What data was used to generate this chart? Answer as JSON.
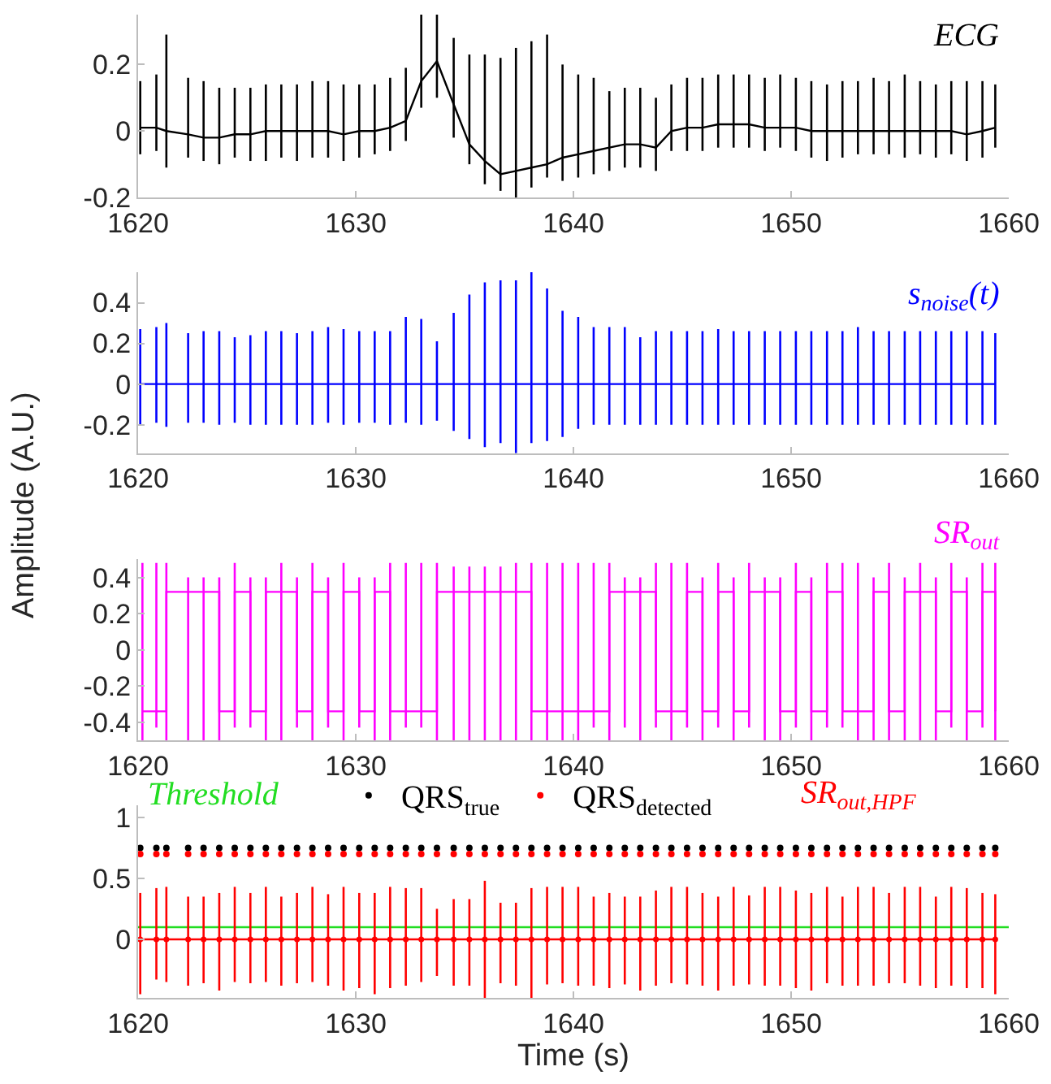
{
  "chart_data": [
    {
      "type": "line",
      "x": [
        1620.1,
        1620.84,
        1621.3,
        1622.3,
        1623.01,
        1623.73,
        1624.44,
        1625.16,
        1625.87,
        1626.58,
        1627.3,
        1628.01,
        1628.73,
        1629.44,
        1630.16,
        1630.87,
        1631.58,
        1632.3,
        1633.01,
        1633.73,
        1634.5,
        1635.22,
        1635.93,
        1636.65,
        1637.36,
        1638.07,
        1638.79,
        1639.5,
        1640.22,
        1640.93,
        1641.65,
        1642.36,
        1643.07,
        1643.79,
        1644.5,
        1645.22,
        1645.93,
        1646.65,
        1647.36,
        1648.07,
        1648.79,
        1649.5,
        1650.22,
        1650.93,
        1651.65,
        1652.36,
        1653.07,
        1653.79,
        1654.5,
        1655.22,
        1655.93,
        1656.65,
        1657.36,
        1658.07,
        1658.79,
        1659.38
      ],
      "series": [
        {
          "name": "ECG",
          "color": "#000000",
          "values": [
            0.01,
            0.01,
            0,
            -0.01,
            -0.02,
            -0.02,
            -0.01,
            -0.01,
            0,
            0,
            0,
            0,
            0,
            -0.01,
            0,
            0,
            0.01,
            0.03,
            0.15,
            0.21,
            0.08,
            -0.04,
            -0.09,
            -0.13,
            -0.12,
            -0.11,
            -0.1,
            -0.08,
            -0.07,
            -0.06,
            -0.05,
            -0.04,
            -0.04,
            -0.05,
            0,
            0.01,
            0.01,
            0.02,
            0.02,
            0.02,
            0.01,
            0.01,
            0.01,
            0,
            0,
            0,
            0,
            0,
            0,
            0,
            0,
            0,
            0,
            -0.01,
            0,
            0.01
          ],
          "errors": [
            [
              -0.07,
              0.15
            ],
            [
              -0.06,
              0.17
            ],
            [
              -0.11,
              0.29
            ],
            [
              -0.08,
              0.16
            ],
            [
              -0.09,
              0.15
            ],
            [
              -0.1,
              0.13
            ],
            [
              -0.08,
              0.13
            ],
            [
              -0.09,
              0.13
            ],
            [
              -0.09,
              0.14
            ],
            [
              -0.08,
              0.14
            ],
            [
              -0.09,
              0.14
            ],
            [
              -0.08,
              0.15
            ],
            [
              -0.08,
              0.15
            ],
            [
              -0.09,
              0.14
            ],
            [
              -0.08,
              0.14
            ],
            [
              -0.07,
              0.14
            ],
            [
              -0.06,
              0.16
            ],
            [
              -0.03,
              0.19
            ],
            [
              0.07,
              0.35
            ],
            [
              0.1,
              0.35
            ],
            [
              -0.02,
              0.28
            ],
            [
              -0.1,
              0.23
            ],
            [
              -0.16,
              0.23
            ],
            [
              -0.18,
              0.22
            ],
            [
              -0.2,
              0.25
            ],
            [
              -0.17,
              0.27
            ],
            [
              -0.14,
              0.29
            ],
            [
              -0.15,
              0.2
            ],
            [
              -0.14,
              0.17
            ],
            [
              -0.13,
              0.16
            ],
            [
              -0.12,
              0.12
            ],
            [
              -0.11,
              0.13
            ],
            [
              -0.11,
              0.13
            ],
            [
              -0.12,
              0.1
            ],
            [
              -0.06,
              0.14
            ],
            [
              -0.06,
              0.16
            ],
            [
              -0.06,
              0.16
            ],
            [
              -0.05,
              0.17
            ],
            [
              -0.05,
              0.17
            ],
            [
              -0.05,
              0.17
            ],
            [
              -0.06,
              0.16
            ],
            [
              -0.05,
              0.17
            ],
            [
              -0.06,
              0.16
            ],
            [
              -0.08,
              0.15
            ],
            [
              -0.09,
              0.14
            ],
            [
              -0.08,
              0.15
            ],
            [
              -0.07,
              0.15
            ],
            [
              -0.07,
              0.16
            ],
            [
              -0.07,
              0.15
            ],
            [
              -0.08,
              0.17
            ],
            [
              -0.07,
              0.15
            ],
            [
              -0.08,
              0.14
            ],
            [
              -0.07,
              0.15
            ],
            [
              -0.09,
              0.15
            ],
            [
              -0.08,
              0.15
            ],
            [
              -0.05,
              0.14
            ]
          ]
        }
      ],
      "xlim": [
        1620,
        1660
      ],
      "xticks": [
        1620,
        1630,
        1640,
        1650,
        1660
      ],
      "ylim": [
        -0.2,
        0.35
      ],
      "yticks": [
        -0.2,
        0,
        0.2
      ],
      "legend": "top right",
      "grid": false
    },
    {
      "type": "line",
      "x": [
        1620.1,
        1620.84,
        1621.3,
        1622.3,
        1623.01,
        1623.73,
        1624.44,
        1625.16,
        1625.87,
        1626.58,
        1627.3,
        1628.01,
        1628.73,
        1629.44,
        1630.16,
        1630.87,
        1631.58,
        1632.3,
        1633.01,
        1633.73,
        1634.5,
        1635.22,
        1635.93,
        1636.65,
        1637.36,
        1638.07,
        1638.79,
        1639.5,
        1640.22,
        1640.93,
        1641.65,
        1642.36,
        1643.07,
        1643.79,
        1644.5,
        1645.22,
        1645.93,
        1646.65,
        1647.36,
        1648.07,
        1648.79,
        1649.5,
        1650.22,
        1650.93,
        1651.65,
        1652.36,
        1653.07,
        1653.79,
        1654.5,
        1655.22,
        1655.93,
        1656.65,
        1657.36,
        1658.07,
        1658.79,
        1659.38
      ],
      "series": [
        {
          "name": "s$_{noise}$(t)",
          "color": "#0000ff",
          "values": [
            0,
            0,
            0,
            0,
            0,
            0,
            0,
            0,
            0,
            0,
            0,
            0,
            0,
            0,
            0,
            0,
            0,
            0,
            0,
            0,
            0,
            0,
            0,
            0,
            0,
            0,
            0,
            0,
            0,
            0,
            0,
            0,
            0,
            0,
            0,
            0,
            0,
            0,
            0,
            0,
            0,
            0,
            0,
            0,
            0,
            0,
            0,
            0,
            0,
            0,
            0,
            0,
            0,
            0,
            0,
            0
          ],
          "errors": [
            [
              -0.2,
              0.27
            ],
            [
              -0.19,
              0.28
            ],
            [
              -0.21,
              0.3
            ],
            [
              -0.19,
              0.25
            ],
            [
              -0.19,
              0.26
            ],
            [
              -0.2,
              0.26
            ],
            [
              -0.19,
              0.23
            ],
            [
              -0.2,
              0.24
            ],
            [
              -0.2,
              0.26
            ],
            [
              -0.2,
              0.26
            ],
            [
              -0.2,
              0.25
            ],
            [
              -0.2,
              0.26
            ],
            [
              -0.19,
              0.28
            ],
            [
              -0.2,
              0.27
            ],
            [
              -0.19,
              0.26
            ],
            [
              -0.19,
              0.26
            ],
            [
              -0.2,
              0.26
            ],
            [
              -0.19,
              0.33
            ],
            [
              -0.2,
              0.32
            ],
            [
              -0.18,
              0.21
            ],
            [
              -0.23,
              0.35
            ],
            [
              -0.27,
              0.44
            ],
            [
              -0.31,
              0.5
            ],
            [
              -0.29,
              0.51
            ],
            [
              -0.34,
              0.51
            ],
            [
              -0.29,
              0.55
            ],
            [
              -0.28,
              0.47
            ],
            [
              -0.26,
              0.36
            ],
            [
              -0.22,
              0.33
            ],
            [
              -0.2,
              0.28
            ],
            [
              -0.2,
              0.28
            ],
            [
              -0.2,
              0.28
            ],
            [
              -0.2,
              0.23
            ],
            [
              -0.2,
              0.26
            ],
            [
              -0.2,
              0.26
            ],
            [
              -0.2,
              0.26
            ],
            [
              -0.2,
              0.26
            ],
            [
              -0.2,
              0.27
            ],
            [
              -0.2,
              0.26
            ],
            [
              -0.2,
              0.26
            ],
            [
              -0.2,
              0.26
            ],
            [
              -0.2,
              0.26
            ],
            [
              -0.2,
              0.26
            ],
            [
              -0.2,
              0.26
            ],
            [
              -0.2,
              0.26
            ],
            [
              -0.2,
              0.26
            ],
            [
              -0.2,
              0.28
            ],
            [
              -0.2,
              0.26
            ],
            [
              -0.2,
              0.26
            ],
            [
              -0.2,
              0.26
            ],
            [
              -0.2,
              0.26
            ],
            [
              -0.2,
              0.26
            ],
            [
              -0.2,
              0.26
            ],
            [
              -0.2,
              0.26
            ],
            [
              -0.2,
              0.26
            ],
            [
              -0.2,
              0.25
            ]
          ]
        }
      ],
      "xlim": [
        1620,
        1660
      ],
      "xticks": [
        1620,
        1630,
        1640,
        1650,
        1660
      ],
      "ylim": [
        -0.34,
        0.55
      ],
      "yticks": [
        -0.2,
        0,
        0.2,
        0.4
      ],
      "legend": "top right",
      "grid": false
    },
    {
      "type": "step",
      "x": [
        1620.2,
        1620.84,
        1621.3,
        1622.3,
        1623.01,
        1623.73,
        1624.44,
        1625.16,
        1625.87,
        1626.58,
        1627.3,
        1628.01,
        1628.73,
        1629.44,
        1630.16,
        1630.87,
        1631.58,
        1632.3,
        1633.01,
        1633.73,
        1634.5,
        1635.22,
        1635.93,
        1636.65,
        1637.36,
        1638.07,
        1638.79,
        1639.5,
        1640.22,
        1640.93,
        1641.65,
        1642.36,
        1643.07,
        1643.79,
        1644.5,
        1645.22,
        1645.93,
        1646.65,
        1647.36,
        1648.07,
        1648.79,
        1649.5,
        1650.22,
        1650.93,
        1651.65,
        1652.36,
        1653.07,
        1653.79,
        1654.5,
        1655.22,
        1655.93,
        1656.65,
        1657.36,
        1658.07,
        1658.79,
        1659.38
      ],
      "ylabel": "Amplitude (A.U.)",
      "series": [
        {
          "name": "SR$_{out}$",
          "color": "#ff00ff",
          "values": [
            -0.34,
            -0.34,
            0.32,
            0.32,
            0.32,
            -0.34,
            0.32,
            -0.34,
            0.32,
            0.32,
            -0.34,
            0.32,
            -0.34,
            0.32,
            -0.34,
            0.32,
            -0.34,
            -0.34,
            -0.34,
            0.32,
            0.32,
            0.32,
            0.32,
            0.32,
            0.32,
            -0.34,
            -0.34,
            -0.34,
            -0.34,
            -0.34,
            0.32,
            0.32,
            0.32,
            -0.34,
            -0.34,
            0.32,
            -0.34,
            0.32,
            -0.34,
            0.32,
            0.32,
            -0.34,
            0.32,
            -0.34,
            0.32,
            -0.34,
            -0.34,
            0.32,
            -0.34,
            0.32,
            0.32,
            -0.34,
            0.32,
            -0.34,
            0.32,
            -0.34
          ],
          "errors": [
            [
              -0.5,
              0.48
            ],
            [
              -0.43,
              0.48
            ],
            [
              -0.5,
              0.48
            ],
            [
              -0.5,
              0.4
            ],
            [
              -0.5,
              0.4
            ],
            [
              -0.5,
              0.4
            ],
            [
              -0.43,
              0.48
            ],
            [
              -0.43,
              0.4
            ],
            [
              -0.5,
              0.4
            ],
            [
              -0.5,
              0.48
            ],
            [
              -0.43,
              0.4
            ],
            [
              -0.5,
              0.48
            ],
            [
              -0.43,
              0.4
            ],
            [
              -0.5,
              0.48
            ],
            [
              -0.43,
              0.4
            ],
            [
              -0.5,
              0.4
            ],
            [
              -0.5,
              0.48
            ],
            [
              -0.43,
              0.48
            ],
            [
              -0.43,
              0.48
            ],
            [
              -0.5,
              0.48
            ],
            [
              -0.5,
              0.46
            ],
            [
              -0.5,
              0.46
            ],
            [
              -0.5,
              0.46
            ],
            [
              -0.5,
              0.46
            ],
            [
              -0.5,
              0.48
            ],
            [
              -0.5,
              0.48
            ],
            [
              -0.5,
              0.48
            ],
            [
              -0.5,
              0.48
            ],
            [
              -0.5,
              0.48
            ],
            [
              -0.43,
              0.48
            ],
            [
              -0.5,
              0.48
            ],
            [
              -0.43,
              0.4
            ],
            [
              -0.5,
              0.4
            ],
            [
              -0.43,
              0.48
            ],
            [
              -0.5,
              0.48
            ],
            [
              -0.43,
              0.48
            ],
            [
              -0.5,
              0.4
            ],
            [
              -0.43,
              0.48
            ],
            [
              -0.5,
              0.4
            ],
            [
              -0.43,
              0.48
            ],
            [
              -0.5,
              0.4
            ],
            [
              -0.5,
              0.4
            ],
            [
              -0.43,
              0.48
            ],
            [
              -0.5,
              0.4
            ],
            [
              -0.43,
              0.48
            ],
            [
              -0.43,
              0.48
            ],
            [
              -0.5,
              0.48
            ],
            [
              -0.5,
              0.4
            ],
            [
              -0.5,
              0.48
            ],
            [
              -0.5,
              0.4
            ],
            [
              -0.5,
              0.48
            ],
            [
              -0.5,
              0.4
            ],
            [
              -0.43,
              0.48
            ],
            [
              -0.5,
              0.4
            ],
            [
              -0.43,
              0.48
            ],
            [
              -0.5,
              0.48
            ]
          ]
        }
      ],
      "xlim": [
        1620,
        1660
      ],
      "xticks": [
        1620,
        1630,
        1640,
        1650,
        1660
      ],
      "ylim": [
        -0.5,
        0.5
      ],
      "yticks": [
        -0.4,
        -0.2,
        0,
        0.2,
        0.4
      ],
      "legend": "top right",
      "grid": false
    },
    {
      "type": "line",
      "x": [
        1620.1,
        1620.84,
        1621.3,
        1622.3,
        1623.01,
        1623.73,
        1624.44,
        1625.16,
        1625.87,
        1626.58,
        1627.3,
        1628.01,
        1628.73,
        1629.44,
        1630.16,
        1630.87,
        1631.58,
        1632.3,
        1633.01,
        1633.73,
        1634.5,
        1635.22,
        1635.93,
        1636.65,
        1637.36,
        1638.07,
        1638.79,
        1639.5,
        1640.22,
        1640.93,
        1641.65,
        1642.36,
        1643.07,
        1643.79,
        1644.5,
        1645.22,
        1645.93,
        1646.65,
        1647.36,
        1648.07,
        1648.79,
        1649.5,
        1650.22,
        1650.93,
        1651.65,
        1652.36,
        1653.07,
        1653.79,
        1654.5,
        1655.22,
        1655.93,
        1656.65,
        1657.36,
        1658.07,
        1658.79,
        1659.38
      ],
      "xlabel": "Time (s)",
      "series": [
        {
          "name": "Threshold",
          "type": "line",
          "color": "#22dd22",
          "x": [
            1620,
            1660
          ],
          "values": [
            0.1,
            0.1
          ]
        },
        {
          "name": "QRS$_{true}$",
          "type": "scatter",
          "marker": "circle",
          "color": "#000000",
          "values": [
            0.75,
            0.75,
            0.75,
            0.75,
            0.75,
            0.75,
            0.75,
            0.75,
            0.75,
            0.75,
            0.75,
            0.75,
            0.75,
            0.75,
            0.75,
            0.75,
            0.75,
            0.75,
            0.75,
            0.75,
            0.75,
            0.75,
            0.75,
            0.75,
            0.75,
            0.75,
            0.75,
            0.75,
            0.75,
            0.75,
            0.75,
            0.75,
            0.75,
            0.75,
            0.75,
            0.75,
            0.75,
            0.75,
            0.75,
            0.75,
            0.75,
            0.75,
            0.75,
            0.75,
            0.75,
            0.75,
            0.75,
            0.75,
            0.75,
            0.75,
            0.75,
            0.75,
            0.75,
            0.75,
            0.75,
            0.75
          ]
        },
        {
          "name": "QRS$_{detected}$",
          "type": "scatter",
          "marker": "circle",
          "color": "#ff0000",
          "values": [
            0.7,
            0.7,
            0.7,
            0.7,
            0.7,
            0.7,
            0.7,
            0.7,
            0.7,
            0.7,
            0.7,
            0.7,
            0.7,
            0.7,
            0.7,
            0.7,
            0.7,
            0.7,
            0.7,
            0.7,
            0.7,
            0.7,
            0.7,
            0.7,
            0.7,
            0.7,
            0.7,
            0.7,
            0.7,
            0.7,
            0.7,
            0.7,
            0.7,
            0.7,
            0.7,
            0.7,
            0.7,
            0.7,
            0.7,
            0.7,
            0.7,
            0.7,
            0.7,
            0.7,
            0.7,
            0.7,
            0.7,
            0.7,
            0.7,
            0.7,
            0.7,
            0.7,
            0.7,
            0.7,
            0.7,
            0.7
          ]
        },
        {
          "name": "SR$_{out,HPF}$",
          "type": "line",
          "marker": "circle",
          "color": "#ff0000",
          "values": [
            0,
            0,
            0,
            0,
            0,
            0,
            0,
            0,
            0,
            0,
            0,
            0,
            0,
            0,
            0,
            0,
            0,
            0,
            0,
            0,
            0,
            0,
            0,
            0,
            0,
            0,
            0,
            0,
            0,
            0,
            0,
            0,
            0,
            0,
            0,
            0,
            0,
            0,
            0,
            0,
            0,
            0,
            0,
            0,
            0,
            0,
            0,
            0,
            0,
            0,
            0,
            0,
            0,
            0,
            0,
            0
          ],
          "errors": [
            [
              -0.45,
              0.38
            ],
            [
              -0.33,
              0.42
            ],
            [
              -0.35,
              0.43
            ],
            [
              -0.38,
              0.35
            ],
            [
              -0.36,
              0.35
            ],
            [
              -0.42,
              0.38
            ],
            [
              -0.35,
              0.43
            ],
            [
              -0.36,
              0.38
            ],
            [
              -0.35,
              0.43
            ],
            [
              -0.38,
              0.35
            ],
            [
              -0.36,
              0.38
            ],
            [
              -0.35,
              0.43
            ],
            [
              -0.38,
              0.37
            ],
            [
              -0.42,
              0.43
            ],
            [
              -0.4,
              0.38
            ],
            [
              -0.45,
              0.38
            ],
            [
              -0.4,
              0.43
            ],
            [
              -0.38,
              0.42
            ],
            [
              -0.35,
              0.42
            ],
            [
              -0.3,
              0.25
            ],
            [
              -0.38,
              0.33
            ],
            [
              -0.38,
              0.33
            ],
            [
              -0.48,
              0.48
            ],
            [
              -0.36,
              0.3
            ],
            [
              -0.38,
              0.3
            ],
            [
              -0.48,
              0.42
            ],
            [
              -0.37,
              0.43
            ],
            [
              -0.36,
              0.43
            ],
            [
              -0.38,
              0.43
            ],
            [
              -0.38,
              0.35
            ],
            [
              -0.4,
              0.38
            ],
            [
              -0.37,
              0.35
            ],
            [
              -0.42,
              0.35
            ],
            [
              -0.38,
              0.4
            ],
            [
              -0.36,
              0.43
            ],
            [
              -0.37,
              0.43
            ],
            [
              -0.38,
              0.38
            ],
            [
              -0.42,
              0.35
            ],
            [
              -0.38,
              0.43
            ],
            [
              -0.37,
              0.36
            ],
            [
              -0.38,
              0.43
            ],
            [
              -0.38,
              0.43
            ],
            [
              -0.4,
              0.4
            ],
            [
              -0.42,
              0.38
            ],
            [
              -0.36,
              0.43
            ],
            [
              -0.38,
              0.35
            ],
            [
              -0.38,
              0.43
            ],
            [
              -0.38,
              0.43
            ],
            [
              -0.36,
              0.38
            ],
            [
              -0.36,
              0.43
            ],
            [
              -0.38,
              0.43
            ],
            [
              -0.4,
              0.35
            ],
            [
              -0.38,
              0.43
            ],
            [
              -0.4,
              0.42
            ],
            [
              -0.4,
              0.38
            ],
            [
              -0.45,
              0.37
            ]
          ]
        }
      ],
      "xlim": [
        1620,
        1660
      ],
      "xticks": [
        1620,
        1630,
        1640,
        1650,
        1660
      ],
      "ylim": [
        -0.48,
        1.1
      ],
      "yticks": [
        0,
        0.5,
        1
      ],
      "legend": "top",
      "grid": false
    }
  ]
}
